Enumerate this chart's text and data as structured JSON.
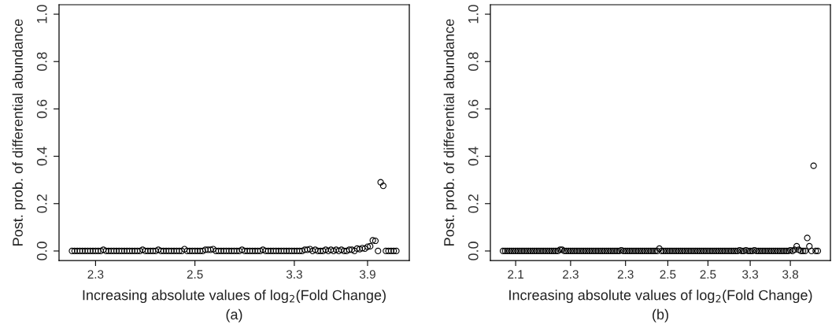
{
  "chart_data": [
    {
      "type": "scatter",
      "xlabel": "Increasing absolute values of log$_{2}$(Fold Change)",
      "ylabel": "Post. prob. of differential abundance",
      "annotations": [
        "(a)"
      ],
      "marker": "circle",
      "grid": false,
      "categories": [
        null,
        null,
        null,
        null,
        null,
        null,
        null,
        null,
        null,
        "2.3",
        null,
        null,
        null,
        null,
        null,
        null,
        null,
        null,
        null,
        null,
        null,
        null,
        null,
        null,
        null,
        null,
        null,
        null,
        null,
        null,
        null,
        null,
        null,
        null,
        null,
        null,
        null,
        null,
        null,
        null,
        null,
        null,
        null,
        null,
        null,
        null,
        null,
        "2.5",
        null,
        null,
        null,
        null,
        null,
        null,
        null,
        null,
        null,
        null,
        null,
        null,
        null,
        null,
        null,
        null,
        null,
        null,
        null,
        null,
        null,
        null,
        null,
        null,
        null,
        null,
        null,
        null,
        null,
        null,
        null,
        null,
        null,
        null,
        null,
        null,
        null,
        "3.3",
        null,
        null,
        null,
        null,
        null,
        null,
        null,
        null,
        null,
        null,
        null,
        null,
        null,
        null,
        null,
        null,
        null,
        null,
        null,
        null,
        null,
        null,
        null,
        null,
        null,
        null,
        null,
        "3.9",
        null,
        null,
        null,
        null,
        null,
        null,
        null,
        null,
        null,
        null,
        null
      ],
      "series": [
        {
          "color": "#000000",
          "values": [
            0,
            0,
            0,
            0,
            0,
            0,
            0,
            0,
            0,
            0,
            0,
            0,
            0.005,
            0,
            0,
            0,
            0,
            0,
            0,
            0,
            0,
            0,
            0,
            0,
            0,
            0,
            0,
            0.005,
            0,
            0,
            0,
            0,
            0,
            0.005,
            0,
            0,
            0,
            0,
            0,
            0,
            0,
            0,
            0,
            0.008,
            0,
            0,
            0,
            0,
            0,
            0,
            0,
            0.005,
            0.005,
            0.005,
            0.008,
            0,
            0,
            0,
            0,
            0,
            0,
            0,
            0,
            0,
            0,
            0.005,
            0,
            0,
            0,
            0,
            0,
            0,
            0,
            0.005,
            0,
            0,
            0,
            0,
            0,
            0,
            0,
            0,
            0,
            0,
            0,
            0,
            0,
            0,
            0,
            0.005,
            0.005,
            0.008,
            0,
            0.005,
            0,
            0,
            0,
            0.005,
            0,
            0.005,
            0,
            0.005,
            0,
            0.005,
            0,
            0,
            0.005,
            0.005,
            0,
            0.01,
            0.008,
            0.012,
            0.01,
            0.018,
            0.02,
            0.045,
            0.043,
            0,
            0.29,
            0.275,
            0,
            0,
            0,
            0,
            0
          ]
        }
      ],
      "ylim": [
        -0.04,
        1.04
      ],
      "yticks": [
        {
          "value": 0,
          "label": "0.0"
        },
        {
          "value": 0.2,
          "label": "0.2"
        },
        {
          "value": 0.4,
          "label": "0.4"
        },
        {
          "value": 0.6,
          "label": "0.6"
        },
        {
          "value": 0.8,
          "label": "0.8"
        },
        {
          "value": 1,
          "label": "1.0"
        }
      ]
    },
    {
      "type": "scatter",
      "xlabel": "Increasing absolute values of log$_{2}$(Fold Change)",
      "ylabel": "Post. prob. of differential abundance",
      "annotations": [
        "(b)"
      ],
      "marker": "circle",
      "grid": false,
      "categories": [
        null,
        null,
        null,
        null,
        null,
        null,
        "2.1",
        null,
        null,
        null,
        null,
        null,
        null,
        null,
        null,
        null,
        null,
        null,
        null,
        null,
        null,
        null,
        null,
        null,
        null,
        null,
        null,
        null,
        null,
        null,
        null,
        null,
        "2.3",
        null,
        null,
        null,
        null,
        null,
        null,
        null,
        null,
        null,
        null,
        null,
        null,
        null,
        null,
        null,
        null,
        null,
        null,
        null,
        null,
        null,
        null,
        null,
        null,
        null,
        "2.3",
        null,
        null,
        null,
        null,
        null,
        null,
        null,
        null,
        null,
        null,
        null,
        null,
        null,
        null,
        null,
        null,
        null,
        null,
        null,
        "2.5",
        null,
        null,
        null,
        null,
        null,
        null,
        null,
        null,
        null,
        null,
        null,
        null,
        null,
        null,
        null,
        null,
        null,
        null,
        "2.5",
        null,
        null,
        null,
        null,
        null,
        null,
        null,
        null,
        null,
        null,
        null,
        null,
        null,
        null,
        null,
        null,
        null,
        null,
        null,
        "3.3",
        null,
        null,
        null,
        null,
        null,
        null,
        null,
        null,
        null,
        null,
        null,
        null,
        null,
        null,
        null,
        null,
        null,
        null,
        "3.8",
        null,
        null,
        null,
        null,
        null,
        null,
        null,
        null,
        null,
        null,
        null,
        null,
        null
      ],
      "series": [
        {
          "color": "#000000",
          "values": [
            0,
            0,
            0,
            0,
            0,
            0,
            0,
            0,
            0,
            0,
            0,
            0,
            0,
            0,
            0,
            0,
            0,
            0,
            0,
            0,
            0,
            0,
            0,
            0,
            0,
            0,
            0,
            0.005,
            0.005,
            0,
            0,
            0,
            0,
            0,
            0,
            0,
            0,
            0,
            0,
            0,
            0,
            0,
            0,
            0,
            0,
            0,
            0,
            0,
            0,
            0,
            0,
            0,
            0,
            0,
            0,
            0,
            0.003,
            0,
            0,
            0,
            0,
            0,
            0,
            0,
            0,
            0,
            0,
            0,
            0,
            0,
            0,
            0,
            0,
            0,
            0.01,
            0,
            0,
            0,
            0,
            0,
            0,
            0,
            0,
            0,
            0,
            0,
            0,
            0,
            0,
            0,
            0,
            0,
            0,
            0,
            0,
            0,
            0,
            0,
            0,
            0,
            0,
            0,
            0,
            0,
            0,
            0,
            0,
            0,
            0,
            0,
            0,
            0,
            0.003,
            0,
            0,
            0.003,
            0,
            0,
            0,
            0.003,
            0,
            0,
            0,
            0,
            0,
            0,
            0,
            0,
            0,
            0,
            0,
            0,
            0,
            0,
            0,
            0,
            0.003,
            0,
            0.005,
            0.02,
            0.005,
            0,
            0,
            0,
            0.055,
            0.02,
            0,
            0.36,
            0,
            0
          ]
        }
      ],
      "ylim": [
        -0.04,
        1.04
      ],
      "yticks": [
        {
          "value": 0,
          "label": "0.0"
        },
        {
          "value": 0.2,
          "label": "0.2"
        },
        {
          "value": 0.4,
          "label": "0.4"
        },
        {
          "value": 0.6,
          "label": "0.6"
        },
        {
          "value": 0.8,
          "label": "0.8"
        },
        {
          "value": 1,
          "label": "1.0"
        }
      ]
    }
  ]
}
